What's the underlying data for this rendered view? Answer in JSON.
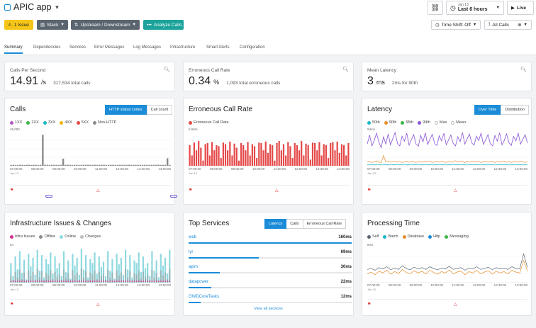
{
  "header": {
    "title": "APIC app",
    "issue_label": "1 Issue",
    "stack_label": "Stack",
    "updown_label": "Upstream / Downstream",
    "analyze_label": "Analyze Calls",
    "time_small": "Jan 13",
    "time_big": "Last 6 hours",
    "live_label": "Live",
    "timeshift_label": "Time Shift: Off",
    "allcalls_label": "All Calls"
  },
  "tabs": [
    "Summary",
    "Dependencies",
    "Services",
    "Error Messages",
    "Log Messages",
    "Infrastructure",
    "Smart Alerts",
    "Configuration"
  ],
  "stats": {
    "cps": {
      "label": "Calls Per Second",
      "value": "14.91",
      "unit": "/s",
      "sub": "317,534 total calls"
    },
    "err": {
      "label": "Erroneous Call Rate",
      "value": "0.34",
      "unit": "%",
      "sub": "1,093 total erroneous calls"
    },
    "lat": {
      "label": "Mean Latency",
      "value": "3",
      "unit": "ms",
      "sub": "2ms for 90th"
    }
  },
  "calls": {
    "title": "Calls",
    "btn_on": "HTTP status codes",
    "btn_off": "Call count",
    "legend": [
      {
        "label": "1XX",
        "color": "#b05cc4"
      },
      {
        "label": "2XX",
        "color": "#3db54a"
      },
      {
        "label": "3XX",
        "color": "#19b7c6"
      },
      {
        "label": "4XX",
        "color": "#f0b400"
      },
      {
        "label": "5XX",
        "color": "#e54848"
      },
      {
        "label": "Non-HTTP",
        "color": "#8a8a8a"
      }
    ],
    "ymax": "45,000",
    "values": [
      1200,
      1300,
      900,
      1100,
      1400,
      1200,
      1000,
      1300,
      1250,
      1150,
      1350,
      1200,
      1100,
      1300,
      41000,
      1400,
      1200,
      1100,
      1300,
      1250,
      1200,
      1100,
      1300,
      9500,
      1200,
      1400,
      1250,
      1150,
      1200,
      1300,
      1100,
      1200,
      1300,
      1250,
      1400,
      1100,
      1200,
      1300,
      1150,
      1200,
      1250,
      1350,
      1100,
      1200,
      1300,
      1250,
      1150,
      1200,
      1300,
      1100,
      1200,
      1250,
      1350,
      1100,
      1200,
      1300,
      1150,
      1200,
      1250,
      1300,
      1200,
      1100,
      1300,
      1250,
      1200,
      1400,
      1150,
      1200,
      1300,
      10000,
      1200
    ]
  },
  "errrate": {
    "title": "Erroneous Call Rate",
    "legend": [
      {
        "label": "Erroneous Call Rate",
        "color": "#e54848"
      }
    ],
    "ymax": "0.66%",
    "values": [
      0.4,
      0.2,
      0.45,
      0.3,
      0.48,
      0.35,
      0.1,
      0.42,
      0.44,
      0.2,
      0.46,
      0.3,
      0.4,
      0.38,
      0.15,
      0.45,
      0.42,
      0.3,
      0.47,
      0.2,
      0.43,
      0.35,
      0.1,
      0.44,
      0.4,
      0.3,
      0.46,
      0.2,
      0.42,
      0.38,
      0.15,
      0.45,
      0.44,
      0.3,
      0.47,
      0.25,
      0.42,
      0.4,
      0.1,
      0.44,
      0.48,
      0.3,
      0.42,
      0.2,
      0.46,
      0.38,
      0.15,
      0.44,
      0.4,
      0.3,
      0.48,
      0.2,
      0.43,
      0.4,
      0.12,
      0.45,
      0.44,
      0.3,
      0.46,
      0.2,
      0.42,
      0.4,
      0.15,
      0.44,
      0.46,
      0.3,
      0.47,
      0.25,
      0.42,
      0.4,
      0.2,
      0.44
    ]
  },
  "latency": {
    "title": "Latency",
    "btn_on": "Over Time",
    "btn_off": "Distribution",
    "ymax": "94ms",
    "legend": [
      {
        "label": "50th",
        "color": "#19b7c6"
      },
      {
        "label": "90th",
        "color": "#e98d2b"
      },
      {
        "label": "95th",
        "color": "#3db54a"
      },
      {
        "label": "99th",
        "color": "#8a55d6"
      },
      {
        "label": "Max",
        "color": "#cccccc"
      },
      {
        "label": "Mean",
        "color": "#cccccc"
      }
    ],
    "p99": [
      60,
      85,
      55,
      70,
      90,
      65,
      50,
      80,
      60,
      88,
      58,
      75,
      92,
      62,
      55,
      82,
      68,
      90,
      57,
      72,
      86,
      60,
      54,
      84,
      66,
      91,
      59,
      73,
      87,
      61,
      56,
      83,
      69,
      90,
      58,
      71,
      85,
      62,
      55,
      80,
      67,
      92,
      60,
      74,
      88,
      63,
      57,
      82,
      70,
      90,
      59,
      72,
      86,
      61,
      55,
      84,
      68,
      91,
      58,
      70,
      88,
      64,
      56,
      81,
      69,
      90,
      60,
      73,
      86,
      62
    ],
    "p90": [
      10,
      12,
      9,
      11,
      14,
      10,
      9,
      28,
      11,
      12,
      10,
      13,
      11,
      10,
      12,
      9,
      11,
      13,
      10,
      12,
      11,
      9,
      12,
      10,
      11,
      13,
      10,
      12,
      9,
      11,
      12,
      10,
      13,
      11,
      9,
      12,
      10,
      11,
      14,
      10,
      12,
      11,
      9,
      13,
      10,
      12,
      11,
      10,
      12,
      9,
      11,
      13,
      10,
      12,
      11,
      9,
      12,
      10,
      11,
      13,
      10,
      12,
      9,
      11,
      12,
      10,
      13,
      11,
      9,
      12
    ],
    "p50": [
      3,
      4,
      3,
      3,
      4,
      3,
      3,
      4,
      3,
      3,
      4,
      3,
      3,
      4,
      3,
      3,
      4,
      3,
      3,
      4,
      3,
      3,
      4,
      3,
      3,
      4,
      3,
      3,
      4,
      3,
      3,
      4,
      3,
      3,
      4,
      3,
      3,
      4,
      3,
      3,
      4,
      3,
      3,
      4,
      3,
      3,
      4,
      3,
      3,
      4,
      3,
      3,
      4,
      3,
      3,
      4,
      3,
      3,
      4,
      3,
      3,
      4,
      3,
      3,
      4,
      3,
      3,
      4,
      3,
      3
    ]
  },
  "infra": {
    "title": "Infrastructure Issues & Changes",
    "ymax": "54",
    "legend": [
      {
        "label": "Infra Issues",
        "color": "#d6308e"
      },
      {
        "label": "Offline",
        "color": "#8a8a8a"
      },
      {
        "label": "Online",
        "color": "#8fd9e0"
      },
      {
        "label": "Changes",
        "color": "#bfbfbf"
      }
    ],
    "online": [
      30,
      10,
      40,
      20,
      48,
      15,
      35,
      5,
      44,
      25,
      38,
      12,
      50,
      18,
      42,
      8,
      36,
      28,
      46,
      14,
      40,
      22,
      30,
      10,
      48,
      16,
      34,
      6,
      44,
      26,
      38,
      12,
      52,
      20,
      42,
      8,
      36,
      30,
      46,
      14,
      40,
      24,
      32,
      10,
      48,
      18,
      36,
      6,
      44,
      28,
      38,
      12,
      50,
      20,
      42,
      8,
      34,
      30,
      46,
      16,
      40,
      22,
      30,
      10,
      48,
      18,
      34,
      8,
      44,
      26,
      38,
      14,
      50
    ],
    "offline": [
      20,
      8,
      30,
      15,
      36,
      10,
      28,
      4,
      34,
      18,
      30,
      8,
      38,
      14,
      32,
      6,
      26,
      20,
      36,
      10,
      30,
      16,
      22,
      8,
      36,
      12,
      26,
      4,
      34,
      20,
      28,
      8,
      40,
      14,
      32,
      6,
      28,
      22,
      34,
      10,
      30,
      18,
      24,
      8,
      36,
      14,
      28,
      4,
      34,
      20,
      28,
      8,
      38,
      14,
      32,
      6,
      26,
      22,
      34,
      12,
      30,
      16,
      22,
      8,
      36,
      14,
      26,
      6,
      34,
      20,
      28,
      10,
      38
    ]
  },
  "top_services": {
    "title": "Top Services",
    "btn_on": "Latency",
    "btn_mid": "Calls",
    "btn_off": "Erroneous Call Rate",
    "view_all": "View all services",
    "items": [
      {
        "name": "web",
        "value": "160ms",
        "fraction": 1.0
      },
      {
        "name": "lyr",
        "value": "69ms",
        "fraction": 0.43
      },
      {
        "name": "apim",
        "value": "30ms",
        "fraction": 0.19
      },
      {
        "name": "datapower",
        "value": "22ms",
        "fraction": 0.14
      },
      {
        "name": "GWDCoreTasks",
        "value": "12ms",
        "fraction": 0.075
      }
    ]
  },
  "processing": {
    "title": "Processing Time",
    "ymax": "8ms",
    "legend": [
      {
        "label": "Self",
        "color": "#5a6570"
      },
      {
        "label": "Batch",
        "color": "#19b7c6"
      },
      {
        "label": "Database",
        "color": "#e98d2b"
      },
      {
        "label": "Http",
        "color": "#1a8cd8"
      },
      {
        "label": "Messaging",
        "color": "#3db54a"
      }
    ],
    "self": [
      3.0,
      3.2,
      2.8,
      3.4,
      3.1,
      3.6,
      2.9,
      3.3,
      3.0,
      3.8,
      3.2,
      2.9,
      3.5,
      3.1,
      3.4,
      3.0,
      3.6,
      3.2,
      2.9,
      3.3,
      3.1,
      3.7,
      3.0,
      3.2,
      3.4,
      2.8,
      3.3,
      3.1,
      3.6,
      3.0,
      3.2,
      3.5,
      2.9,
      3.4,
      3.1,
      3.3,
      3.0,
      3.6,
      3.2,
      3.1,
      6.5,
      3.4
    ],
    "database": [
      2.0,
      2.4,
      1.8,
      2.6,
      2.2,
      2.8,
      1.9,
      2.5,
      2.1,
      3.0,
      2.3,
      2.0,
      2.7,
      2.2,
      2.6,
      2.0,
      2.8,
      2.3,
      1.9,
      2.5,
      2.2,
      2.9,
      2.0,
      2.4,
      2.6,
      1.8,
      2.5,
      2.2,
      2.8,
      2.0,
      2.4,
      2.7,
      1.9,
      2.6,
      2.2,
      2.5,
      2.0,
      2.8,
      2.4,
      2.2,
      5.0,
      2.6
    ]
  },
  "time_axis": [
    "07:00:00",
    "08:00:00",
    "09:00:00",
    "10:00:00",
    "11:00:00",
    "12:00:00",
    "12:30:00",
    "13:00:00"
  ],
  "date_label": "Jan 13"
}
